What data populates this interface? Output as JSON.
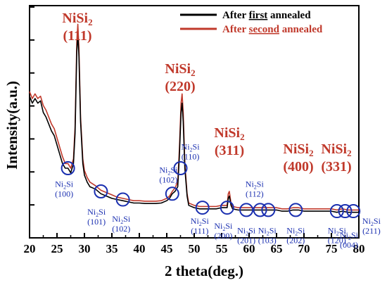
{
  "chart_data": {
    "type": "line",
    "xlabel": "2 theta(deg.)",
    "ylabel": "Intensity(a.u.)",
    "xlim": [
      20,
      80
    ],
    "ylim": [
      0,
      100
    ],
    "x_ticks": [
      20,
      25,
      30,
      35,
      40,
      45,
      50,
      55,
      60,
      65,
      70,
      75,
      80
    ],
    "y_ticks_labeled": false,
    "grid": false,
    "legend_position": "top-right",
    "series": [
      {
        "name": "After first annealed",
        "legend_parts": [
          "After ",
          "first",
          " annealed"
        ],
        "color": "#000000",
        "points": [
          [
            20,
            61
          ],
          [
            20.5,
            58
          ],
          [
            21,
            60
          ],
          [
            21.5,
            58
          ],
          [
            22,
            59
          ],
          [
            22.5,
            54
          ],
          [
            23,
            52
          ],
          [
            23.5,
            49
          ],
          [
            24,
            46
          ],
          [
            24.5,
            44
          ],
          [
            25,
            40
          ],
          [
            25.5,
            36
          ],
          [
            26,
            32
          ],
          [
            26.5,
            30
          ],
          [
            27,
            30
          ],
          [
            27.5,
            28
          ],
          [
            28,
            32
          ],
          [
            28.3,
            45
          ],
          [
            28.6,
            80
          ],
          [
            28.8,
            88
          ],
          [
            29,
            78
          ],
          [
            29.3,
            50
          ],
          [
            29.7,
            32
          ],
          [
            30,
            27
          ],
          [
            30.5,
            24
          ],
          [
            31,
            22
          ],
          [
            32,
            21
          ],
          [
            33,
            19
          ],
          [
            34,
            18
          ],
          [
            35,
            17
          ],
          [
            36,
            16.5
          ],
          [
            37,
            16
          ],
          [
            38,
            15.5
          ],
          [
            39,
            15
          ],
          [
            40,
            15
          ],
          [
            41,
            14.8
          ],
          [
            42,
            14.8
          ],
          [
            43,
            14.8
          ],
          [
            44,
            15
          ],
          [
            45,
            16
          ],
          [
            45.5,
            17
          ],
          [
            46,
            19
          ],
          [
            46.5,
            20
          ],
          [
            47,
            22
          ],
          [
            47.3,
            35
          ],
          [
            47.6,
            54
          ],
          [
            47.8,
            58
          ],
          [
            48,
            50
          ],
          [
            48.3,
            30
          ],
          [
            48.7,
            18
          ],
          [
            49,
            14
          ],
          [
            50,
            13
          ],
          [
            51,
            12.5
          ],
          [
            52,
            12.5
          ],
          [
            53,
            12.5
          ],
          [
            54,
            12.5
          ],
          [
            55,
            13
          ],
          [
            56,
            13
          ],
          [
            56.2,
            17
          ],
          [
            56.4,
            18
          ],
          [
            56.7,
            14
          ],
          [
            57,
            12.5
          ],
          [
            58,
            12
          ],
          [
            59,
            12
          ],
          [
            60,
            12
          ],
          [
            61,
            12
          ],
          [
            62,
            12
          ],
          [
            63,
            12
          ],
          [
            64,
            12
          ],
          [
            65,
            12
          ],
          [
            66,
            11.5
          ],
          [
            67,
            11.5
          ],
          [
            68,
            12
          ],
          [
            69,
            12
          ],
          [
            70,
            11.5
          ],
          [
            71,
            11.5
          ],
          [
            72,
            11.5
          ],
          [
            73,
            11.5
          ],
          [
            74,
            11.5
          ],
          [
            75,
            11.5
          ],
          [
            76,
            11
          ],
          [
            77,
            11.5
          ],
          [
            78,
            11
          ],
          [
            79,
            11
          ],
          [
            80,
            11
          ]
        ]
      },
      {
        "name": "After second annealed",
        "legend_parts": [
          "After ",
          "second",
          " annealed"
        ],
        "color": "#c0392b",
        "points": [
          [
            20,
            63
          ],
          [
            20.5,
            60
          ],
          [
            21,
            62
          ],
          [
            21.5,
            60
          ],
          [
            22,
            61
          ],
          [
            22.5,
            57
          ],
          [
            23,
            55
          ],
          [
            23.5,
            52
          ],
          [
            24,
            49
          ],
          [
            24.5,
            47
          ],
          [
            25,
            43
          ],
          [
            25.5,
            39
          ],
          [
            26,
            35
          ],
          [
            26.5,
            32
          ],
          [
            27,
            32
          ],
          [
            27.5,
            30
          ],
          [
            28,
            34
          ],
          [
            28.3,
            48
          ],
          [
            28.6,
            84
          ],
          [
            28.8,
            92
          ],
          [
            29,
            82
          ],
          [
            29.3,
            52
          ],
          [
            29.7,
            34
          ],
          [
            30,
            29
          ],
          [
            30.5,
            26
          ],
          [
            31,
            24
          ],
          [
            32,
            22.5
          ],
          [
            33,
            20.5
          ],
          [
            34,
            19.5
          ],
          [
            35,
            18.5
          ],
          [
            36,
            17.5
          ],
          [
            37,
            17
          ],
          [
            38,
            16.5
          ],
          [
            39,
            16
          ],
          [
            40,
            16
          ],
          [
            41,
            15.8
          ],
          [
            42,
            15.8
          ],
          [
            43,
            15.8
          ],
          [
            44,
            16
          ],
          [
            45,
            17
          ],
          [
            45.5,
            18
          ],
          [
            46,
            20
          ],
          [
            46.5,
            21.5
          ],
          [
            47,
            24
          ],
          [
            47.3,
            38
          ],
          [
            47.6,
            58
          ],
          [
            47.8,
            62
          ],
          [
            48,
            54
          ],
          [
            48.3,
            32
          ],
          [
            48.7,
            19
          ],
          [
            49,
            15
          ],
          [
            50,
            14
          ],
          [
            51,
            13.5
          ],
          [
            52,
            13.5
          ],
          [
            53,
            13.5
          ],
          [
            54,
            13.5
          ],
          [
            55,
            14
          ],
          [
            56,
            14
          ],
          [
            56.2,
            19
          ],
          [
            56.4,
            20
          ],
          [
            56.7,
            15
          ],
          [
            57,
            13.5
          ],
          [
            58,
            13
          ],
          [
            59,
            13
          ],
          [
            60,
            13
          ],
          [
            61,
            13
          ],
          [
            62,
            13
          ],
          [
            63,
            13
          ],
          [
            64,
            13
          ],
          [
            65,
            13
          ],
          [
            66,
            12.5
          ],
          [
            67,
            12.5
          ],
          [
            68,
            13
          ],
          [
            69,
            13
          ],
          [
            70,
            12.5
          ],
          [
            71,
            12.5
          ],
          [
            72,
            12.5
          ],
          [
            73,
            12.5
          ],
          [
            74,
            12.5
          ],
          [
            75,
            12.5
          ],
          [
            76,
            12
          ],
          [
            77,
            12.5
          ],
          [
            78,
            12
          ],
          [
            79,
            12
          ],
          [
            80,
            12
          ]
        ]
      }
    ],
    "peak_labels": [
      {
        "formula": "NiSi",
        "sub": "2",
        "hkl": "(111)",
        "x": 28.7,
        "y": 88
      },
      {
        "formula": "NiSi",
        "sub": "2",
        "hkl": "(220)",
        "x": 47.6,
        "y": 62
      },
      {
        "formula": "NiSi",
        "sub": "2",
        "hkl": "(311)",
        "x": 56.3,
        "y": 44
      },
      {
        "formula": "NiSi",
        "sub": "2",
        "hkl": "(400)",
        "x": 69,
        "y": 44
      },
      {
        "formula": "NiSi",
        "sub": "2",
        "hkl": "(331)",
        "x": 76,
        "y": 44
      }
    ],
    "annotations": [
      {
        "formula": "Ni",
        "sub": "2",
        "rest": "Si",
        "hkl": "(100)",
        "x": 27,
        "y": 30,
        "label_x": 26.3,
        "label_y": 22
      },
      {
        "formula": "Ni",
        "sub": "2",
        "rest": "Si",
        "hkl": "(101)",
        "x": 33,
        "y": 20,
        "label_x": 32.2,
        "label_y": 10
      },
      {
        "formula": "Ni",
        "sub": "2",
        "rest": "Si",
        "hkl": "(102)",
        "x": 37,
        "y": 16.5,
        "label_x": 36.7,
        "label_y": 7
      },
      {
        "formula": "Ni",
        "sub": "2",
        "rest": "Si",
        "hkl": "(102)",
        "x": 46,
        "y": 19,
        "label_x": 45.3,
        "label_y": 28
      },
      {
        "formula": "Ni",
        "sub": "2",
        "rest": "Si",
        "hkl": "(110)",
        "x": 47.5,
        "y": 30,
        "label_x": 49.3,
        "label_y": 38
      },
      {
        "formula": "Ni",
        "sub": "2",
        "rest": "Si",
        "hkl": "(111)",
        "x": 51.5,
        "y": 13,
        "label_x": 51,
        "label_y": 6
      },
      {
        "formula": "Ni",
        "sub": "2",
        "rest": "Si",
        "hkl": "(200)",
        "x": 56,
        "y": 13,
        "label_x": 55.3,
        "label_y": 4
      },
      {
        "formula": "Ni",
        "sub": "2",
        "rest": "Si",
        "hkl": "(112)",
        "x": 62,
        "y": 12,
        "label_x": 61,
        "label_y": 22
      },
      {
        "formula": "Ni",
        "sub": "2",
        "rest": "Si",
        "hkl": "(201)",
        "x": 59.5,
        "y": 12,
        "label_x": 59.5,
        "label_y": 2
      },
      {
        "formula": "Ni",
        "sub": "2",
        "rest": "Si",
        "hkl": "(103)",
        "x": 63.5,
        "y": 12,
        "label_x": 63.3,
        "label_y": 2
      },
      {
        "formula": "Ni",
        "sub": "2",
        "rest": "Si",
        "hkl": "(202)",
        "x": 68.5,
        "y": 12,
        "label_x": 68.5,
        "label_y": 2
      },
      {
        "formula": "Ni",
        "sub": "2",
        "rest": "Si",
        "hkl": "(120)",
        "x": 76,
        "y": 11.5,
        "label_x": 76,
        "label_y": 2
      },
      {
        "formula": "Ni",
        "sub": "2",
        "rest": "Si",
        "hkl": "(004)",
        "x": 77.5,
        "y": 11.5,
        "label_x": 78.2,
        "label_y": 0
      },
      {
        "formula": "Ni",
        "sub": "2",
        "rest": "Si",
        "hkl": "(211)",
        "x": 79,
        "y": 11.5,
        "label_x": 82.3,
        "label_y": 6
      }
    ]
  }
}
